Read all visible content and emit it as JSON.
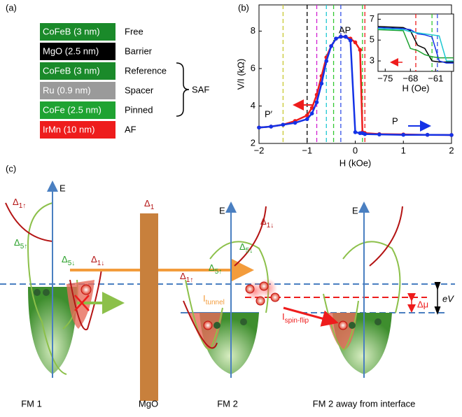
{
  "panel_labels": [
    "(a)",
    "(b)",
    "(c)"
  ],
  "stack": {
    "layers": [
      {
        "name": "CoFeB (3 nm)",
        "role": "Free",
        "color": "#1a8a2a"
      },
      {
        "name": "MgO (2.5 nm)",
        "role": "Barrier",
        "color": "#000000"
      },
      {
        "name": "CoFeB (3 nm)",
        "role": "Reference",
        "color": "#1a8a2a"
      },
      {
        "name": "Ru (0.9 nm)",
        "role": "Spacer",
        "color": "#9a9a9a"
      },
      {
        "name": "CoFe (2.5 nm)",
        "role": "Pinned",
        "color": "#1fa332"
      },
      {
        "name": "IrMn (10 nm)",
        "role": "AF",
        "color": "#ee1c1c"
      }
    ],
    "group_label": "SAF"
  },
  "chart_data": {
    "type": "line",
    "x_label": "H (kOe)",
    "y_label": "V/I (kΩ)",
    "x": [
      -2,
      -1.75,
      -1.5,
      -1.25,
      -1,
      -0.9,
      -0.8,
      -0.7,
      -0.6,
      -0.5,
      -0.4,
      -0.3,
      -0.2,
      -0.1,
      0,
      0.1,
      0.15,
      0.2,
      0.5,
      1,
      1.5,
      2
    ],
    "series": [
      {
        "color": "#ee1c1c",
        "values": [
          2.85,
          2.9,
          3.0,
          3.2,
          3.5,
          3.9,
          4.6,
          5.6,
          6.6,
          7.2,
          7.6,
          7.7,
          7.7,
          7.6,
          7.4,
          7.0,
          2.6,
          2.55,
          2.5,
          2.48,
          2.46,
          2.45
        ]
      },
      {
        "color": "#1432e6",
        "values": [
          2.85,
          2.9,
          3.0,
          3.1,
          3.3,
          3.6,
          4.2,
          5.2,
          6.4,
          7.2,
          7.6,
          7.7,
          7.7,
          7.5,
          2.6,
          2.55,
          2.55,
          2.5,
          2.48,
          2.46,
          2.46,
          2.45
        ]
      }
    ],
    "xlim": [
      -2,
      2
    ],
    "ylim": [
      2,
      9.4
    ],
    "xticks": [
      {
        "value": -2,
        "label": "−2"
      },
      {
        "value": -1,
        "label": "−1"
      },
      0,
      1,
      2
    ],
    "yticks": [
      2,
      4,
      6,
      8
    ],
    "vlines": [
      {
        "x": -1.5,
        "color": "#c8c832"
      },
      {
        "x": -1,
        "color": "#000000"
      },
      {
        "x": -0.8,
        "color": "#d21ed2"
      },
      {
        "x": -0.6,
        "color": "#1ec8d2"
      },
      {
        "x": -0.45,
        "color": "#32c832"
      },
      {
        "x": -0.3,
        "color": "#3250e6"
      },
      {
        "x": 0.15,
        "color": "#32c832"
      },
      {
        "x": 0.2,
        "color": "#ee1c1c"
      }
    ],
    "annotations": [
      "AP",
      "P′",
      "P"
    ],
    "inset": {
      "x_label": "H (Oe)",
      "x": [
        -77,
        -70,
        -68,
        -66,
        -64,
        -62,
        -60,
        -58,
        -56
      ],
      "series": [
        {
          "color": "#000000",
          "values": [
            6.3,
            6.2,
            5.9,
            4.5,
            4.2,
            3.0,
            2.9,
            2.9,
            2.9
          ]
        },
        {
          "color": "#1432e6",
          "values": [
            6.2,
            6.1,
            6.0,
            5.6,
            5.5,
            5.3,
            3.0,
            2.8,
            2.8
          ]
        },
        {
          "color": "#1fa332",
          "values": [
            6.0,
            5.9,
            4.2,
            4.0,
            3.6,
            3.4,
            3.3,
            3.3,
            3.3
          ]
        },
        {
          "color": "#1ec8d2",
          "values": [
            6.1,
            6.0,
            5.8,
            5.7,
            5.6,
            5.5,
            5.4,
            3.0,
            3.0
          ]
        }
      ],
      "xlim": [
        -77,
        -56
      ],
      "ylim": [
        2,
        7.5
      ],
      "xticks": [
        {
          "value": -75,
          "label": "−75"
        },
        {
          "value": -68,
          "label": "−68"
        },
        {
          "value": -61,
          "label": "−61"
        }
      ],
      "yticks": [
        3,
        5,
        7
      ],
      "vlines": [
        {
          "x": -66.5,
          "color": "#ee1c1c"
        },
        {
          "x": -62,
          "color": "#32c832"
        },
        {
          "x": -60.5,
          "color": "#3250e6"
        }
      ]
    }
  },
  "diagram": {
    "axis_label": "E",
    "bands": [
      {
        "symbol": "Δ",
        "sub": "1↑"
      },
      {
        "symbol": "Δ",
        "sub": "5↑"
      },
      {
        "symbol": "Δ",
        "sub": "5↓"
      },
      {
        "symbol": "Δ",
        "sub": "1↓"
      },
      {
        "symbol": "Δ",
        "sub": "1"
      },
      {
        "symbol": "Δ",
        "sub": "1↓"
      },
      {
        "symbol": "Δ",
        "sub": "5↓"
      },
      {
        "symbol": "Δ",
        "sub": "1↑"
      },
      {
        "symbol": "Δ",
        "sub": "5↑"
      }
    ],
    "currents": [
      {
        "symbol": "I",
        "sub": "tunnel"
      },
      {
        "symbol": "I",
        "sub": "spin-flip"
      }
    ],
    "delta_mu": "Δμ",
    "bias": "eV",
    "captions": [
      "FM 1",
      "MgO",
      "FM 2",
      "FM 2 away from interface"
    ]
  }
}
